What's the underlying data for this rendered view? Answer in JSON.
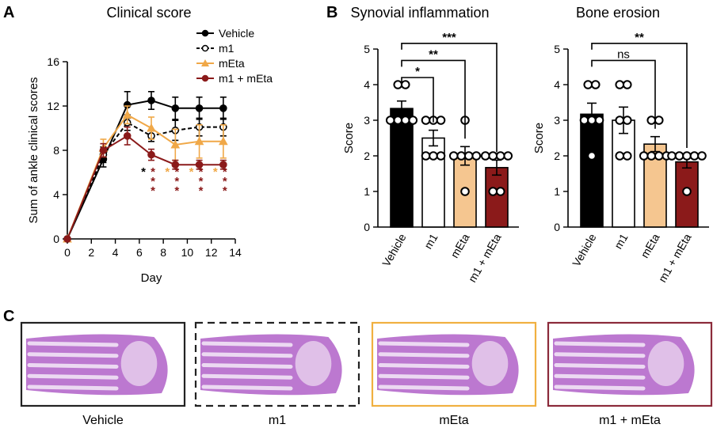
{
  "panel_labels": [
    "A",
    "B",
    "C"
  ],
  "colors": {
    "vehicle": "#000000",
    "m1": "#000000",
    "meta": "#f0a848",
    "m1_meta": "#8b1a1a",
    "bar_meta": "#f5c690",
    "bar_m1_meta": "#8b1a1a",
    "tissue": "#b060c8"
  },
  "chart_data": [
    {
      "type": "line",
      "title": "Clinical score",
      "xlabel": "Day",
      "ylabel": "Sum of ankle clinical scores",
      "xlim": [
        0,
        14
      ],
      "ylim": [
        0,
        16
      ],
      "xticks": [
        "0",
        "2",
        "4",
        "6",
        "8",
        "10",
        "12",
        "14"
      ],
      "yticks": [
        "0",
        "4",
        "8",
        "12",
        "16"
      ],
      "x": [
        0,
        3,
        5,
        7,
        9,
        11,
        13
      ],
      "legend": [
        "Vehicle",
        "m1",
        "mEta",
        "m1 + mEta"
      ],
      "legend_position": "top-right",
      "series": [
        {
          "name": "Vehicle",
          "values": [
            0,
            7.2,
            12.1,
            12.5,
            11.8,
            11.8,
            11.8
          ],
          "errors": [
            0,
            0.7,
            1.2,
            0.8,
            1.0,
            1.0,
            1.0
          ]
        },
        {
          "name": "m1",
          "values": [
            0,
            7.6,
            10.5,
            9.3,
            9.8,
            10.1,
            10.1
          ],
          "errors": [
            0,
            0.7,
            0.7,
            0.5,
            0.9,
            0.8,
            0.8
          ]
        },
        {
          "name": "mEta",
          "values": [
            0,
            8.2,
            11.2,
            10.0,
            8.5,
            8.8,
            8.8
          ],
          "errors": [
            0,
            0.8,
            0.8,
            1.0,
            1.4,
            1.5,
            1.5
          ]
        },
        {
          "name": "m1 + mEta",
          "values": [
            0,
            8.0,
            9.3,
            7.6,
            6.7,
            6.7,
            6.7
          ],
          "errors": [
            0,
            0.6,
            0.8,
            0.5,
            0.4,
            0.4,
            0.4
          ]
        }
      ],
      "significance": [
        {
          "x": 7,
          "stacks": [
            {
              "text": "*",
              "color": "vehicle"
            },
            {
              "text": "*\n*\n*",
              "color": "m1_meta"
            }
          ]
        },
        {
          "x": 9,
          "stacks": [
            {
              "text": "*",
              "color": "meta"
            },
            {
              "text": "*\n*\n*",
              "color": "m1_meta"
            }
          ]
        },
        {
          "x": 11,
          "stacks": [
            {
              "text": "*",
              "color": "meta"
            },
            {
              "text": "*\n*\n*",
              "color": "m1_meta"
            }
          ]
        },
        {
          "x": 13,
          "stacks": [
            {
              "text": "*",
              "color": "meta"
            },
            {
              "text": "*\n*\n*",
              "color": "m1_meta"
            }
          ]
        }
      ]
    },
    {
      "type": "bar",
      "title": "Synovial inflammation",
      "ylabel": "Score",
      "ylim": [
        0,
        5
      ],
      "yticks": [
        "0",
        "1",
        "2",
        "3",
        "4",
        "5"
      ],
      "categories": [
        "Vehicle",
        "m1",
        "mEta",
        "m1 + mEta"
      ],
      "values": [
        3.33,
        2.5,
        2.0,
        1.67
      ],
      "errors": [
        0.21,
        0.22,
        0.26,
        0.21
      ],
      "points": [
        [
          4,
          4,
          3,
          3,
          3,
          3
        ],
        [
          3,
          3,
          3,
          2,
          2,
          2
        ],
        [
          3,
          2,
          2,
          2,
          1,
          2
        ],
        [
          2,
          2,
          2,
          1,
          1,
          2
        ]
      ],
      "comparisons": [
        {
          "from": 0,
          "to": 1,
          "label": "*"
        },
        {
          "from": 0,
          "to": 2,
          "label": "**"
        },
        {
          "from": 0,
          "to": 3,
          "label": "***"
        }
      ]
    },
    {
      "type": "bar",
      "title": "Bone erosion",
      "ylabel": "Score",
      "ylim": [
        0,
        5
      ],
      "yticks": [
        "0",
        "1",
        "2",
        "3",
        "4",
        "5"
      ],
      "categories": [
        "Vehicle",
        "m1",
        "mEta",
        "m1 + mEta"
      ],
      "values": [
        3.17,
        3.0,
        2.33,
        1.83
      ],
      "errors": [
        0.31,
        0.37,
        0.21,
        0.17
      ],
      "points": [
        [
          4,
          4,
          3,
          3,
          3,
          2
        ],
        [
          4,
          4,
          3,
          3,
          2,
          2
        ],
        [
          3,
          3,
          2,
          2,
          2,
          2
        ],
        [
          2,
          2,
          2,
          2,
          2,
          1
        ]
      ],
      "comparisons": [
        {
          "from": 0,
          "to": 2,
          "label": "ns"
        },
        {
          "from": 0,
          "to": 3,
          "label": "**"
        }
      ]
    }
  ],
  "histology": [
    {
      "label": "Vehicle",
      "border": "solid",
      "color": "#222222"
    },
    {
      "label": "m1",
      "border": "dashed",
      "color": "#222222"
    },
    {
      "label": "mEta",
      "border": "solid",
      "color": "#f0b040"
    },
    {
      "label": "m1 + mEta",
      "border": "solid",
      "color": "#8b2a3a"
    }
  ]
}
